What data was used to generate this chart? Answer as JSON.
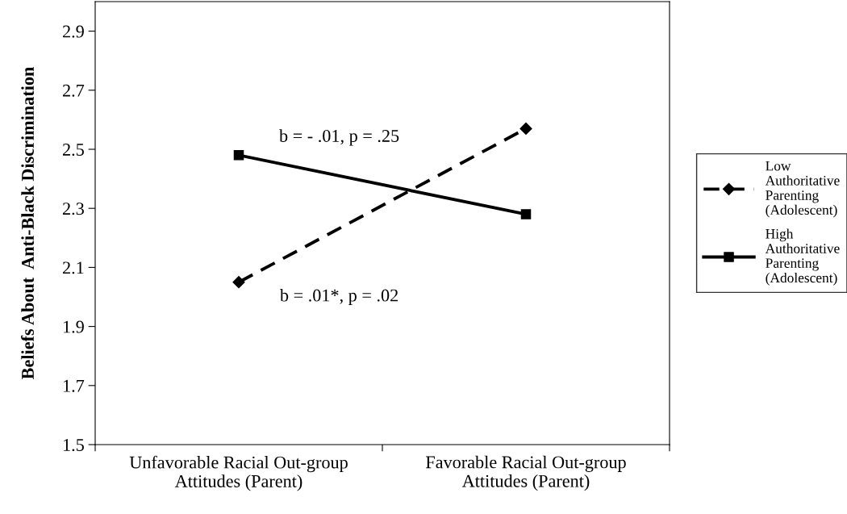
{
  "chart_data": {
    "type": "line",
    "ylabel": "Beliefs About  Anti-Black Discrimination",
    "categories": [
      "Unfavorable Racial Out-group\nAttitudes (Parent)",
      "Favorable Racial Out-group\nAttitudes (Parent)"
    ],
    "series": [
      {
        "name": "Low\nAuthoritative\nParenting\n(Adolescent)",
        "color": "#000000",
        "values": [
          2.05,
          2.57
        ],
        "marker": "diamond",
        "line_style": "dashed"
      },
      {
        "name": "High\nAuthoritative\nParenting\n(Adolescent)",
        "color": "#000000",
        "values": [
          2.48,
          2.28
        ],
        "marker": "square",
        "line_style": "solid"
      }
    ],
    "ylim": [
      1.5,
      3.0
    ],
    "yticks": [
      1.5,
      1.7,
      1.9,
      2.1,
      2.3,
      2.5,
      2.7,
      2.9
    ],
    "annotations": [
      "b = - .01, p = .25",
      "b = .01*, p = .02"
    ],
    "legend": "right",
    "grid": false
  }
}
